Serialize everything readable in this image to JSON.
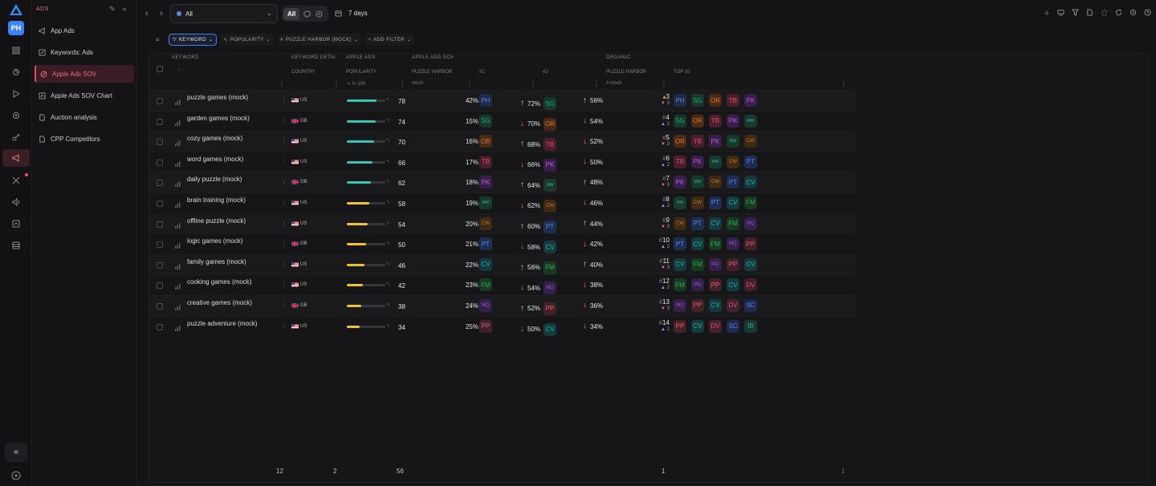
{
  "workspace": {
    "initials": "PH"
  },
  "sidebar": {
    "section_title": "ADS",
    "items": [
      {
        "label": "App Ads",
        "icon": "megaphone-icon"
      },
      {
        "label": "Keywords: Ads",
        "icon": "edit-icon"
      },
      {
        "label": "Apple Ads SOV",
        "icon": "target-icon",
        "active": true
      },
      {
        "label": "Apple Ads SOV Chart",
        "icon": "chart-icon"
      },
      {
        "label": "Auction analysis",
        "icon": "document-icon"
      },
      {
        "label": "CPP Competitors",
        "icon": "document-icon"
      }
    ]
  },
  "topbar": {
    "app_select": "All",
    "segment_all": "All",
    "date_range": "7 days"
  },
  "filters": [
    {
      "label": "KEYWORD",
      "active": true
    },
    {
      "label": "POPULARITY",
      "active": false
    },
    {
      "label": "PUZZLE HARBOR (MOCK)",
      "active": false
    },
    {
      "label": "ADD FILTER",
      "active": false
    }
  ],
  "table": {
    "headers": {
      "keyword": "KEYWORD",
      "keyword_details": "KEYWORD DETAI",
      "apple_ads": "APPLE ADS",
      "apple_ads_sov": "APPLE ADS SOV",
      "organic": "ORGANIC",
      "country": "COUNTRY",
      "popularity": "POPULARITY",
      "puzzle_harbor": "PUZZLE HARBOR",
      "rank1": "#1",
      "rank2": "#2",
      "organic_puzzle_harbor": "PUZZLE HARBOR",
      "top10": "TOP 10",
      "keyword_sub": "–",
      "popularity_sub": "0–100",
      "puzzle_sub": "mock",
      "organic_sub": "mock"
    },
    "rows": [
      {
        "keyword": "puzzle games (mock)",
        "country": "US",
        "flag": "us",
        "popularity": 78,
        "bar_color": "#35c7b4",
        "sov": "42%",
        "own": "PH",
        "r1_dir": "up",
        "r1_pct": "72%",
        "r1_app": "SG",
        "r2_dir": "up",
        "r2_pct": "56%",
        "rank": "3",
        "rank_icon": "trophy",
        "rank_dir": "dn",
        "rank_delta": "3",
        "top10": [
          "PH",
          "SG",
          "OR",
          "TB",
          "PK"
        ]
      },
      {
        "keyword": "garden games (mock)",
        "country": "GB",
        "flag": "gb",
        "popularity": 74,
        "bar_color": "#35c7b4",
        "sov": "15%",
        "own": "SG",
        "r1_dir": "dn",
        "r1_pct": "70%",
        "r1_app": "OR",
        "r2_dir": "dn",
        "r2_pct": "54%",
        "rank": "4",
        "rank_icon": "#",
        "rank_dir": "up",
        "rank_delta": "2",
        "top10": [
          "SG",
          "OR",
          "TB",
          "PK",
          "MW"
        ]
      },
      {
        "keyword": "cozy games (mock)",
        "country": "US",
        "flag": "us",
        "popularity": 70,
        "bar_color": "#35c7b4",
        "sov": "16%",
        "own": "OR",
        "r1_dir": "up",
        "r1_pct": "68%",
        "r1_app": "TB",
        "r2_dir": "dn",
        "r2_pct": "52%",
        "rank": "5",
        "rank_icon": "#",
        "rank_dir": "dn",
        "rank_delta": "3",
        "top10": [
          "OR",
          "TB",
          "PK",
          "MW",
          "CW"
        ]
      },
      {
        "keyword": "word games (mock)",
        "country": "US",
        "flag": "us",
        "popularity": 66,
        "bar_color": "#35c7b4",
        "sov": "17%",
        "own": "TB",
        "r1_dir": "dn",
        "r1_pct": "66%",
        "r1_app": "PK",
        "r2_dir": "dn",
        "r2_pct": "50%",
        "rank": "6",
        "rank_icon": "#",
        "rank_dir": "up",
        "rank_delta": "2",
        "top10": [
          "TB",
          "PK",
          "MW",
          "CW",
          "PT"
        ]
      },
      {
        "keyword": "daily puzzle (mock)",
        "country": "GB",
        "flag": "gb",
        "popularity": 62,
        "bar_color": "#35c7b4",
        "sov": "18%",
        "own": "PK",
        "r1_dir": "up",
        "r1_pct": "64%",
        "r1_app": "MW",
        "r2_dir": "up",
        "r2_pct": "48%",
        "rank": "7",
        "rank_icon": "#",
        "rank_dir": "dn",
        "rank_delta": "3",
        "top10": [
          "PK",
          "MW",
          "CW",
          "PT",
          "CV"
        ]
      },
      {
        "keyword": "brain training (mock)",
        "country": "US",
        "flag": "us",
        "popularity": 58,
        "bar_color": "#f2c230",
        "sov": "19%",
        "own": "MW",
        "r1_dir": "dn",
        "r1_pct": "62%",
        "r1_app": "CW",
        "r2_dir": "dn",
        "r2_pct": "46%",
        "rank": "8",
        "rank_icon": "#",
        "rank_dir": "up",
        "rank_delta": "2",
        "top10": [
          "MW",
          "CW",
          "PT",
          "CV",
          "FM"
        ]
      },
      {
        "keyword": "offline puzzle (mock)",
        "country": "US",
        "flag": "us",
        "popularity": 54,
        "bar_color": "#f2c230",
        "sov": "20%",
        "own": "CW",
        "r1_dir": "up",
        "r1_pct": "60%",
        "r1_app": "PT",
        "r2_dir": "up",
        "r2_pct": "44%",
        "rank": "9",
        "rank_icon": "#",
        "rank_dir": "dn",
        "rank_delta": "3",
        "top10": [
          "CW",
          "PT",
          "CV",
          "FM",
          "MQ"
        ]
      },
      {
        "keyword": "logic games (mock)",
        "country": "GB",
        "flag": "gb",
        "popularity": 50,
        "bar_color": "#f2c230",
        "sov": "21%",
        "own": "PT",
        "r1_dir": "dn",
        "r1_pct": "58%",
        "r1_app": "CV",
        "r2_dir": "dn",
        "r2_pct": "42%",
        "rank": "10",
        "rank_icon": "#",
        "rank_dir": "up",
        "rank_delta": "2",
        "top10": [
          "PT",
          "CV",
          "FM",
          "MQ",
          "PP"
        ]
      },
      {
        "keyword": "family games (mock)",
        "country": "US",
        "flag": "us",
        "popularity": 46,
        "bar_color": "#f2c230",
        "sov": "22%",
        "own": "CV",
        "r1_dir": "up",
        "r1_pct": "56%",
        "r1_app": "FM",
        "r2_dir": "up",
        "r2_pct": "40%",
        "rank": "11",
        "rank_icon": "#",
        "rank_dir": "dn",
        "rank_delta": "3",
        "top10": [
          "CV",
          "FM",
          "MQ",
          "PP",
          "CV"
        ]
      },
      {
        "keyword": "cooking games (mock)",
        "country": "US",
        "flag": "us",
        "popularity": 42,
        "bar_color": "#f2c230",
        "sov": "23%",
        "own": "FM",
        "r1_dir": "dn",
        "r1_pct": "54%",
        "r1_app": "MQ",
        "r2_dir": "dn",
        "r2_pct": "38%",
        "rank": "12",
        "rank_icon": "#",
        "rank_dir": "up",
        "rank_delta": "2",
        "top10": [
          "FM",
          "MQ",
          "PP",
          "CV",
          "DV"
        ]
      },
      {
        "keyword": "creative games (mock)",
        "country": "GB",
        "flag": "gb",
        "popularity": 38,
        "bar_color": "#f2c230",
        "sov": "24%",
        "own": "MQ",
        "r1_dir": "up",
        "r1_pct": "52%",
        "r1_app": "PP",
        "r2_dir": "dn",
        "r2_pct": "36%",
        "rank": "13",
        "rank_icon": "#",
        "rank_dir": "dn",
        "rank_delta": "3",
        "top10": [
          "MQ",
          "PP",
          "CV",
          "DV",
          "SC"
        ]
      },
      {
        "keyword": "puzzle adventure (mock)",
        "country": "US",
        "flag": "us",
        "popularity": 34,
        "bar_color": "#f2c230",
        "sov": "25%",
        "own": "PP",
        "r1_dir": "dn",
        "r1_pct": "50%",
        "r1_app": "CV",
        "r2_dir": "dn",
        "r2_pct": "34%",
        "rank": "14",
        "rank_icon": "#",
        "rank_dir": "up",
        "rank_delta": "2",
        "top10": [
          "PP",
          "CV",
          "DV",
          "SC",
          "IB"
        ]
      }
    ],
    "footer": {
      "keywords": "12",
      "countries": "2",
      "popularity": "56",
      "organic": "1",
      "top10": "1"
    }
  }
}
